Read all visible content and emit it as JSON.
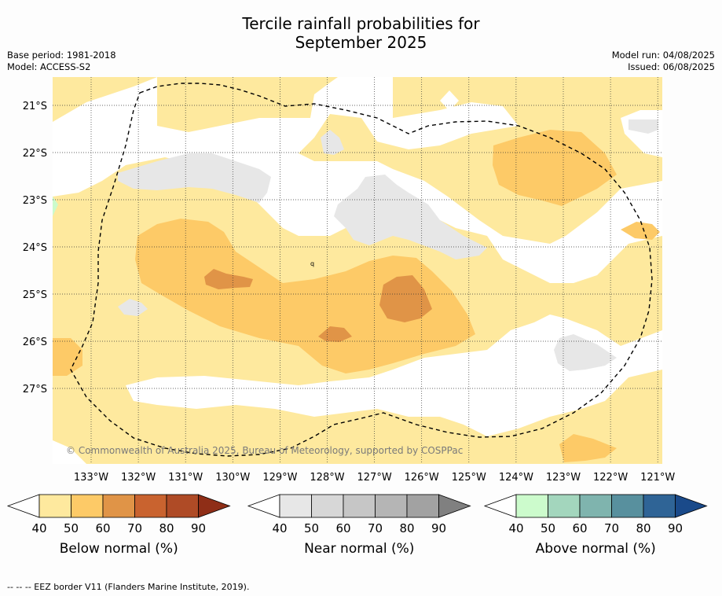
{
  "title_line1": "Tercile rainfall probabilities for",
  "title_line2": "September 2025",
  "meta_left": {
    "base_period": "Base period: 1981-2018",
    "model": "Model: ACCESS-S2"
  },
  "meta_right": {
    "model_run": "Model run: 04/08/2025",
    "issued": "Issued: 06/08/2025"
  },
  "map": {
    "lat_labels": [
      "21°S",
      "22°S",
      "23°S",
      "24°S",
      "25°S",
      "26°S",
      "27°S"
    ],
    "lon_labels": [
      "133°W",
      "132°W",
      "131°W",
      "130°W",
      "129°W",
      "128°W",
      "127°W",
      "126°W",
      "125°W",
      "124°W",
      "123°W",
      "122°W",
      "121°W"
    ],
    "copyright": "© Commonwealth of Australia 2025, Bureau of Meteorology, supported by COSPPac"
  },
  "colorbars": [
    {
      "title": "Below normal (%)",
      "ticks": [
        "40",
        "50",
        "60",
        "70",
        "80",
        "90"
      ],
      "colors": [
        "#fee99e",
        "#fdca67",
        "#e09447",
        "#c9632f",
        "#af4b26"
      ],
      "over": "#8f2e17"
    },
    {
      "title": "Near normal (%)",
      "ticks": [
        "40",
        "50",
        "60",
        "70",
        "80",
        "90"
      ],
      "colors": [
        "#e7e7e7",
        "#d7d7d7",
        "#c6c6c6",
        "#b5b5b5",
        "#a2a2a2"
      ],
      "over": "#808080"
    },
    {
      "title": "Above normal (%)",
      "ticks": [
        "40",
        "50",
        "60",
        "70",
        "80",
        "90"
      ],
      "colors": [
        "#ccfbcc",
        "#a3d6bd",
        "#7fb4ae",
        "#58909e",
        "#2f6496"
      ],
      "over": "#1a4a8a"
    }
  ],
  "footer": "--  --  -- EEZ border V11 (Flanders Marine Institute, 2019)."
}
